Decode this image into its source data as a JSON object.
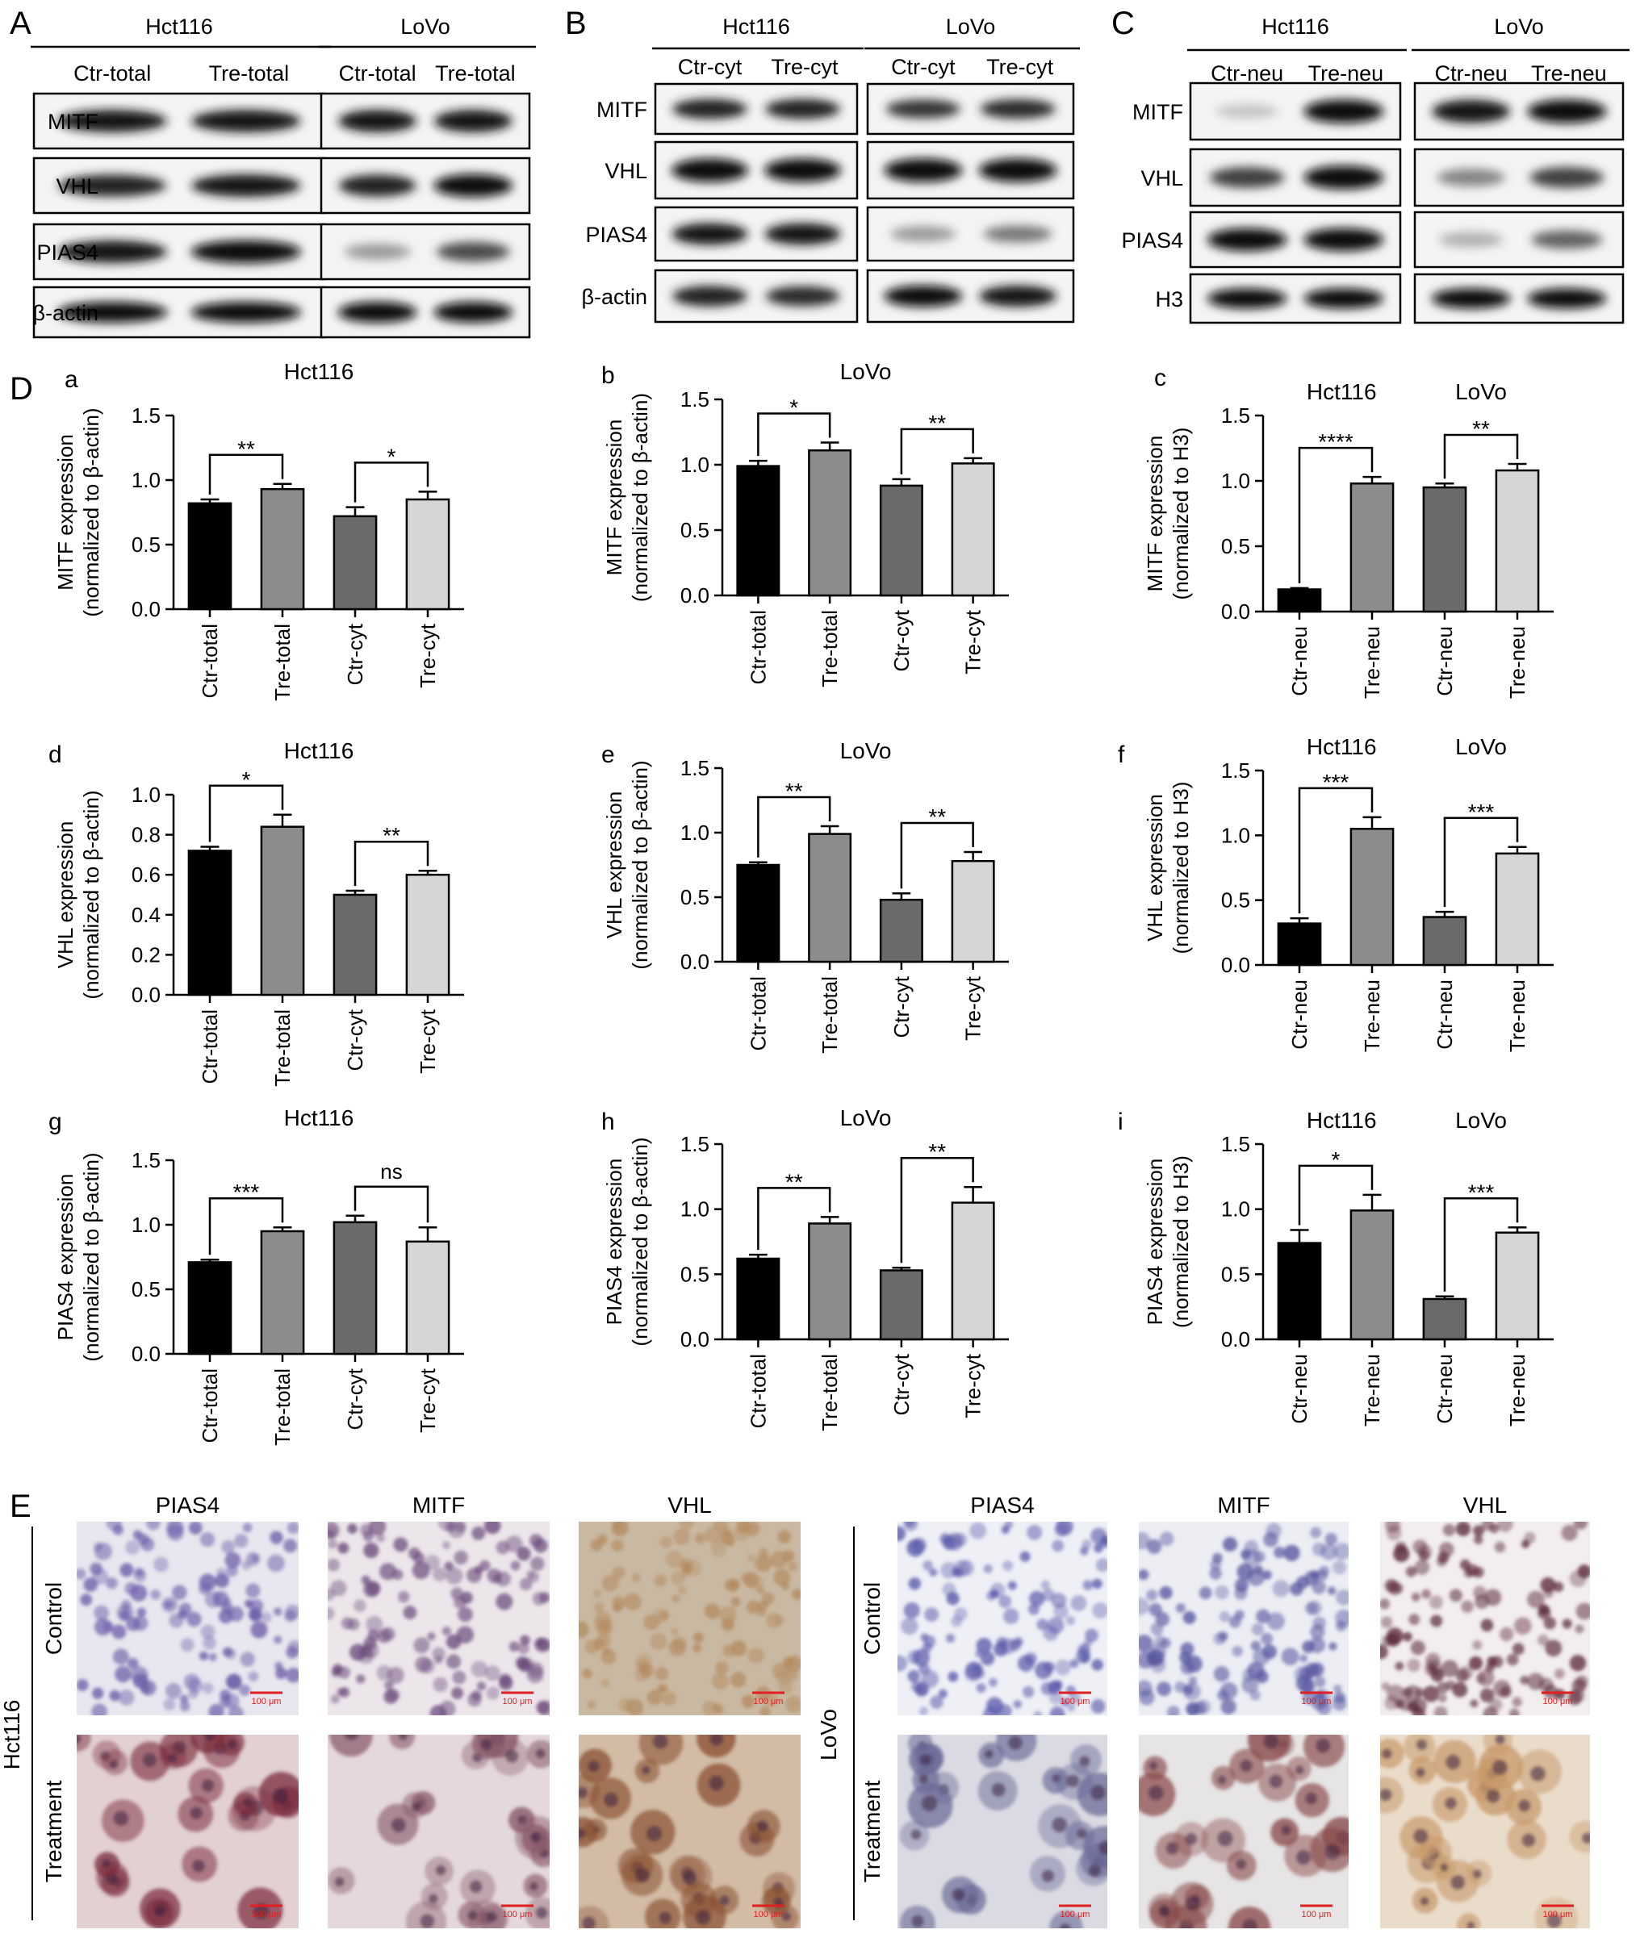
{
  "panel_letters": {
    "A": "A",
    "B": "B",
    "C": "C",
    "D": "D",
    "E": "E"
  },
  "blots": [
    {
      "letter": "A",
      "groups": [
        "Hct116",
        "LoVo"
      ],
      "lanes": [
        [
          "Ctr-total",
          "Tre-total"
        ],
        [
          "Ctr-total",
          "Tre-total"
        ]
      ],
      "rows": [
        "MITF",
        "VHL",
        "PIAS4",
        "β-actin"
      ]
    },
    {
      "letter": "B",
      "groups": [
        "Hct116",
        "LoVo"
      ],
      "lanes": [
        [
          "Ctr-cyt",
          "Tre-cyt"
        ],
        [
          "Ctr-cyt",
          "Tre-cyt"
        ]
      ],
      "rows": [
        "MITF",
        "VHL",
        "PIAS4",
        "β-actin"
      ]
    },
    {
      "letter": "C",
      "groups": [
        "Hct116",
        "LoVo"
      ],
      "lanes": [
        [
          "Ctr-neu",
          "Tre-neu"
        ],
        [
          "Ctr-neu",
          "Tre-neu"
        ]
      ],
      "rows": [
        "MITF",
        "VHL",
        "PIAS4",
        "H3"
      ]
    }
  ],
  "chart_data": [
    {
      "id": "a",
      "type": "bar",
      "title": "Hct116",
      "group_titles": [],
      "ylabel_line1": "MITF expression",
      "ylabel_line2": "(normalized to β-actin)",
      "categories": [
        "Ctr-total",
        "Tre-total",
        "Ctr-cyt",
        "Tre-cyt"
      ],
      "values": [
        0.82,
        0.93,
        0.72,
        0.85
      ],
      "errors": [
        0.03,
        0.04,
        0.07,
        0.06
      ],
      "ylim": [
        0,
        1.5
      ],
      "yticks": [
        "0.0",
        "0.5",
        "1.0",
        "1.5"
      ],
      "significance": [
        {
          "from": 0,
          "to": 1,
          "label": "**"
        },
        {
          "from": 2,
          "to": 3,
          "label": "*"
        }
      ]
    },
    {
      "id": "b",
      "type": "bar",
      "title": "LoVo",
      "group_titles": [],
      "ylabel_line1": "MITF expression",
      "ylabel_line2": "(normalized to β-actin)",
      "categories": [
        "Ctr-total",
        "Tre-total",
        "Ctr-cyt",
        "Tre-cyt"
      ],
      "values": [
        0.99,
        1.11,
        0.84,
        1.01
      ],
      "errors": [
        0.04,
        0.06,
        0.05,
        0.04
      ],
      "ylim": [
        0,
        1.5
      ],
      "yticks": [
        "0.0",
        "0.5",
        "1.0",
        "1.5"
      ],
      "significance": [
        {
          "from": 0,
          "to": 1,
          "label": "*"
        },
        {
          "from": 2,
          "to": 3,
          "label": "**"
        }
      ]
    },
    {
      "id": "c",
      "type": "bar",
      "title": "",
      "group_titles": [
        "Hct116",
        "LoVo"
      ],
      "ylabel_line1": "MITF expression",
      "ylabel_line2": "(normalized to H3)",
      "categories": [
        "Ctr-neu",
        "Tre-neu",
        "Ctr-neu",
        "Tre-neu"
      ],
      "values": [
        0.17,
        0.98,
        0.95,
        1.08
      ],
      "errors": [
        0.01,
        0.05,
        0.03,
        0.05
      ],
      "ylim": [
        0,
        1.5
      ],
      "yticks": [
        "0.0",
        "0.5",
        "1.0",
        "1.5"
      ],
      "significance": [
        {
          "from": 0,
          "to": 1,
          "label": "****"
        },
        {
          "from": 2,
          "to": 3,
          "label": "**"
        }
      ]
    },
    {
      "id": "d",
      "type": "bar",
      "title": "Hct116",
      "group_titles": [],
      "ylabel_line1": "VHL expression",
      "ylabel_line2": "(normalized to β-actin)",
      "categories": [
        "Ctr-total",
        "Tre-total",
        "Ctr-cyt",
        "Tre-cyt"
      ],
      "values": [
        0.72,
        0.84,
        0.5,
        0.6
      ],
      "errors": [
        0.02,
        0.06,
        0.02,
        0.02
      ],
      "ylim": [
        0,
        1.0
      ],
      "yticks": [
        "0.0",
        "0.2",
        "0.4",
        "0.6",
        "0.8",
        "1.0"
      ],
      "significance": [
        {
          "from": 0,
          "to": 1,
          "label": "*"
        },
        {
          "from": 2,
          "to": 3,
          "label": "**"
        }
      ]
    },
    {
      "id": "e",
      "type": "bar",
      "title": "LoVo",
      "group_titles": [],
      "ylabel_line1": "VHL expression",
      "ylabel_line2": "(normalized to β-actin)",
      "categories": [
        "Ctr-total",
        "Tre-total",
        "Ctr-cyt",
        "Tre-cyt"
      ],
      "values": [
        0.75,
        0.99,
        0.48,
        0.78
      ],
      "errors": [
        0.02,
        0.06,
        0.05,
        0.07
      ],
      "ylim": [
        0,
        1.5
      ],
      "yticks": [
        "0.0",
        "0.5",
        "1.0",
        "1.5"
      ],
      "significance": [
        {
          "from": 0,
          "to": 1,
          "label": "**"
        },
        {
          "from": 2,
          "to": 3,
          "label": "**"
        }
      ]
    },
    {
      "id": "f",
      "type": "bar",
      "title": "",
      "group_titles": [
        "Hct116",
        "LoVo"
      ],
      "ylabel_line1": "VHL expression",
      "ylabel_line2": "(normalized to H3)",
      "categories": [
        "Ctr-neu",
        "Tre-neu",
        "Ctr-neu",
        "Tre-neu"
      ],
      "values": [
        0.32,
        1.05,
        0.37,
        0.86
      ],
      "errors": [
        0.04,
        0.09,
        0.04,
        0.05
      ],
      "ylim": [
        0,
        1.5
      ],
      "yticks": [
        "0.0",
        "0.5",
        "1.0",
        "1.5"
      ],
      "significance": [
        {
          "from": 0,
          "to": 1,
          "label": "***"
        },
        {
          "from": 2,
          "to": 3,
          "label": "***"
        }
      ]
    },
    {
      "id": "g",
      "type": "bar",
      "title": "Hct116",
      "group_titles": [],
      "ylabel_line1": "PIAS4 expression",
      "ylabel_line2": "(normalized to β-actin)",
      "categories": [
        "Ctr-total",
        "Tre-total",
        "Ctr-cyt",
        "Tre-cyt"
      ],
      "values": [
        0.71,
        0.95,
        1.02,
        0.87
      ],
      "errors": [
        0.02,
        0.03,
        0.05,
        0.11
      ],
      "ylim": [
        0,
        1.5
      ],
      "yticks": [
        "0.0",
        "0.5",
        "1.0",
        "1.5"
      ],
      "significance": [
        {
          "from": 0,
          "to": 1,
          "label": "***"
        },
        {
          "from": 2,
          "to": 3,
          "label": "ns"
        }
      ]
    },
    {
      "id": "h",
      "type": "bar",
      "title": "LoVo",
      "group_titles": [],
      "ylabel_line1": "PIAS4 expression",
      "ylabel_line2": "(normalized to β-actin)",
      "categories": [
        "Ctr-total",
        "Tre-total",
        "Ctr-cyt",
        "Tre-cyt"
      ],
      "values": [
        0.62,
        0.89,
        0.53,
        1.05
      ],
      "errors": [
        0.03,
        0.05,
        0.02,
        0.12
      ],
      "ylim": [
        0,
        1.5
      ],
      "yticks": [
        "0.0",
        "0.5",
        "1.0",
        "1.5"
      ],
      "significance": [
        {
          "from": 0,
          "to": 1,
          "label": "**"
        },
        {
          "from": 2,
          "to": 3,
          "label": "**"
        }
      ]
    },
    {
      "id": "i",
      "type": "bar",
      "title": "",
      "group_titles": [
        "Hct116",
        "LoVo"
      ],
      "ylabel_line1": "PIAS4 expression",
      "ylabel_line2": "(normalized to H3)",
      "categories": [
        "Ctr-neu",
        "Tre-neu",
        "Ctr-neu",
        "Tre-neu"
      ],
      "values": [
        0.74,
        0.99,
        0.31,
        0.82
      ],
      "errors": [
        0.1,
        0.12,
        0.02,
        0.04
      ],
      "ylim": [
        0,
        1.5
      ],
      "yticks": [
        "0.0",
        "0.5",
        "1.0",
        "1.5"
      ],
      "significance": [
        {
          "from": 0,
          "to": 1,
          "label": "*"
        },
        {
          "from": 2,
          "to": 3,
          "label": "***"
        }
      ]
    }
  ],
  "bar_colors": [
    "#000000",
    "#8c8c8c",
    "#6a6a6a",
    "#d6d6d6"
  ],
  "ihc": {
    "left": {
      "cell_line": "Hct116",
      "columns": [
        "PIAS4",
        "MITF",
        "VHL"
      ],
      "rows": [
        "Control",
        "Treatment"
      ],
      "scale_bar": "100 μm",
      "stain_colors": [
        [
          "#6b5ca8",
          "#6a4a7a",
          "#b48a5e"
        ],
        [
          "#7a2a3a",
          "#8a5a6a",
          "#8a5030"
        ]
      ],
      "background_colors": [
        [
          "#e8e6ee",
          "#ece6ea",
          "#c9b9a2"
        ],
        [
          "#e2d0d2",
          "#e4d8dc",
          "#d2bca6"
        ]
      ]
    },
    "right": {
      "cell_line": "LoVo",
      "columns": [
        "PIAS4",
        "MITF",
        "VHL"
      ],
      "rows": [
        "Control",
        "Treatment"
      ],
      "scale_bar": "100 μm",
      "stain_colors": [
        [
          "#5a5aaa",
          "#5858a0",
          "#5a2838"
        ],
        [
          "#6a6a98",
          "#8a4a4a",
          "#c89a6a"
        ]
      ],
      "background_colors": [
        [
          "#eef0f6",
          "#eceef4",
          "#f2eeee"
        ],
        [
          "#dadbe2",
          "#e6e4e4",
          "#eadccb"
        ]
      ]
    }
  }
}
